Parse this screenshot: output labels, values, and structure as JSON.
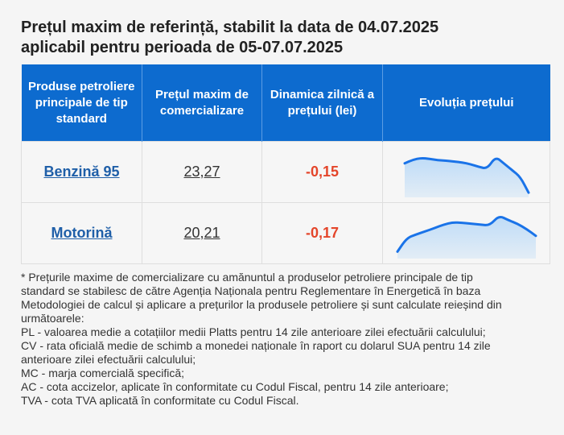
{
  "header": {
    "title_line1": "Prețul maxim de referință, stabilit la data de 04.07.2025",
    "title_line2": "aplicabil pentru perioada de 05-07.07.2025"
  },
  "table": {
    "columns": [
      "Produse petroliere principale de tip standard",
      "Prețul maxim de comercializare",
      "Dinamica zilnică a prețului (lei)",
      "Evoluția prețului"
    ],
    "rows": [
      {
        "product": "Benzină 95",
        "price": "23,27",
        "delta": "-0,15",
        "trend": [
          0.7,
          0.78,
          0.82,
          0.8,
          0.77,
          0.76,
          0.74,
          0.72,
          0.68,
          0.62,
          0.58,
          0.85,
          0.7,
          0.55,
          0.4,
          0.05
        ]
      },
      {
        "product": "Motorină",
        "price": "20,21",
        "delta": "-0,17",
        "trend": [
          0.1,
          0.4,
          0.48,
          0.55,
          0.62,
          0.7,
          0.75,
          0.74,
          0.72,
          0.7,
          0.68,
          0.9,
          0.8,
          0.72,
          0.6,
          0.45
        ]
      }
    ]
  },
  "colors": {
    "header_bg": "#0d6bcf",
    "link": "#1f5fa8",
    "delta": "#e4452a",
    "spark_line": "#1a73e8",
    "spark_fill": "#bfdcf7"
  },
  "footnote": {
    "line1": "* Prețurile maxime de comercializare cu amănuntul a produselor petroliere principale de tip",
    "line2": "standard se stabilesc de către Agenția Naționala pentru Reglementare în Energetică în baza",
    "line3": "Metodologiei de calcul și aplicare a prețurilor la produsele petroliere și sunt calculate reieșind din",
    "line4": "următoarele:",
    "line5": "PL - valoarea medie a cotațiilor medii Platts pentru 14 zile anterioare zilei efectuării calculului;",
    "line6": "CV - rata oficială medie de schimb a monedei naționale în raport cu dolarul SUA pentru 14 zile",
    "line7": "anterioare zilei efectuării calculului;",
    "line8": "MC - marja comercială specifică;",
    "line9": "AC - cota accizelor, aplicate în conformitate cu Codul Fiscal, pentru 14 zile anterioare;",
    "line10": "TVA - cota TVA aplicată în conformitate cu Codul Fiscal."
  }
}
